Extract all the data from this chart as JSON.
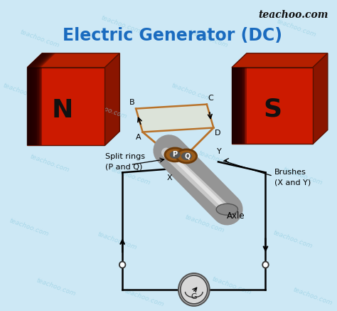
{
  "title": "Electric Generator (DC)",
  "title_color": "#1a6bbf",
  "title_fontsize": 17,
  "watermark": "teachoo.com",
  "bg_color": "#cde8f5",
  "magnet_N_label": "N",
  "magnet_S_label": "S",
  "magnet_front": "#cc2200",
  "magnet_dark": "#6b1a0a",
  "magnet_mid": "#aa1800",
  "magnet_top": "#dd3300",
  "coil_color": "#b8722a",
  "split_ring_label": "Split rings\n(P and Q)",
  "brush_label": "Brushes\n(X and Y)",
  "axle_label": "Axle",
  "brush_x": "X",
  "brush_y": "Y",
  "ring_p": "P",
  "ring_q": "Q",
  "circuit_color": "#222222",
  "axle_color": "#aaaaaa",
  "axle_dark": "#666666",
  "axle_light": "#dddddd",
  "ring_color": "#8B5a2b",
  "ring_dark": "#5C3317"
}
